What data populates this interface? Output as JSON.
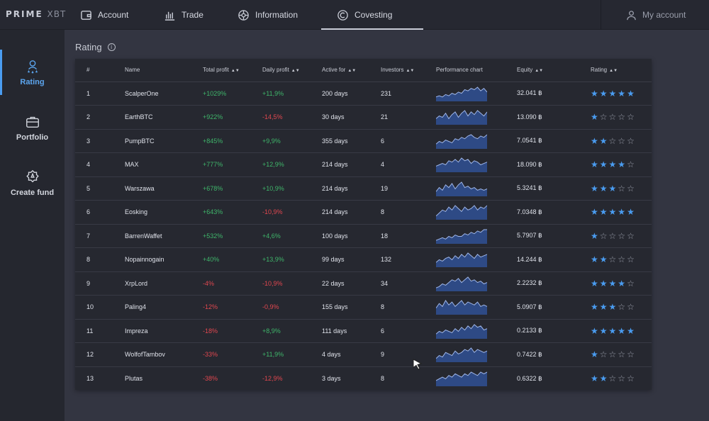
{
  "brand": {
    "logo_bold": "PRIME",
    "logo_light": "XBT"
  },
  "nav": {
    "tabs": [
      {
        "label": "Account",
        "icon": "wallet-icon"
      },
      {
        "label": "Trade",
        "icon": "bar-chart-icon"
      },
      {
        "label": "Information",
        "icon": "globe-icon"
      },
      {
        "label": "Covesting",
        "icon": "covesting-icon",
        "active": true
      }
    ],
    "my_account": "My account"
  },
  "sidebar": {
    "items": [
      {
        "label": "Rating",
        "icon": "rating-icon",
        "active": true
      },
      {
        "label": "Portfolio",
        "icon": "briefcase-icon"
      },
      {
        "label": "Create fund",
        "icon": "create-fund-icon"
      }
    ]
  },
  "page": {
    "title": "Rating",
    "info_glyph": "i"
  },
  "table": {
    "columns": {
      "index": "#",
      "name": "Name",
      "total_profit": "Total profit",
      "daily_profit": "Daily profit",
      "active_for": "Active for",
      "investors": "Investors",
      "performance_chart": "Performance chart",
      "equity": "Equity",
      "rating": "Rating"
    },
    "rows": [
      {
        "index": "1",
        "name": "ScalperOne",
        "total_profit": "+1029%",
        "daily_profit": "+11,9%",
        "active_for": "200 days",
        "investors": "231",
        "equity": "32.041 ฿",
        "rating": 5,
        "spark": [
          3,
          4,
          3,
          5,
          4,
          6,
          5,
          7,
          6,
          9,
          8,
          10,
          9,
          11,
          8,
          10,
          7
        ]
      },
      {
        "index": "2",
        "name": "EarthBTC",
        "total_profit": "+922%",
        "daily_profit": "-14,5%",
        "active_for": "30 days",
        "investors": "21",
        "equity": "13.090 ฿",
        "rating": 1,
        "spark": [
          4,
          6,
          5,
          8,
          4,
          7,
          9,
          5,
          8,
          10,
          6,
          9,
          7,
          10,
          8,
          6,
          9
        ]
      },
      {
        "index": "3",
        "name": "PumpBTC",
        "total_profit": "+845%",
        "daily_profit": "+9,9%",
        "active_for": "355 days",
        "investors": "6",
        "equity": "7.0541 ฿",
        "rating": 2,
        "spark": [
          3,
          5,
          4,
          6,
          5,
          4,
          7,
          6,
          8,
          7,
          9,
          10,
          8,
          7,
          9,
          8,
          10
        ]
      },
      {
        "index": "4",
        "name": "MAX",
        "total_profit": "+777%",
        "daily_profit": "+12,9%",
        "active_for": "214 days",
        "investors": "4",
        "equity": "18.090 ฿",
        "rating": 4,
        "spark": [
          4,
          5,
          6,
          5,
          8,
          7,
          9,
          7,
          10,
          8,
          9,
          6,
          8,
          7,
          5,
          6,
          7
        ]
      },
      {
        "index": "5",
        "name": "Warszawa",
        "total_profit": "+678%",
        "daily_profit": "+10,9%",
        "active_for": "214 days",
        "investors": "19",
        "equity": "5.3241 ฿",
        "rating": 3,
        "spark": [
          3,
          6,
          4,
          8,
          6,
          9,
          5,
          8,
          10,
          6,
          7,
          5,
          6,
          4,
          5,
          4,
          5
        ]
      },
      {
        "index": "6",
        "name": "Eosking",
        "total_profit": "+643%",
        "daily_profit": "-10,9%",
        "active_for": "214 days",
        "investors": "8",
        "equity": "7.0348 ฿",
        "rating": 5,
        "spark": [
          2,
          4,
          6,
          5,
          8,
          6,
          9,
          7,
          5,
          8,
          6,
          7,
          9,
          6,
          8,
          7,
          9
        ]
      },
      {
        "index": "7",
        "name": "BarrenWaffet",
        "total_profit": "+532%",
        "daily_profit": "+4,6%",
        "active_for": "100 days",
        "investors": "18",
        "equity": "5.7907 ฿",
        "rating": 1,
        "spark": [
          2,
          3,
          4,
          3,
          5,
          4,
          6,
          5,
          5,
          7,
          6,
          8,
          7,
          9,
          8,
          10,
          10
        ]
      },
      {
        "index": "8",
        "name": "Nopainnogain",
        "total_profit": "+40%",
        "daily_profit": "+13,9%",
        "active_for": "99 days",
        "investors": "132",
        "equity": "14.244 ฿",
        "rating": 2,
        "spark": [
          3,
          5,
          4,
          6,
          7,
          5,
          8,
          6,
          9,
          7,
          10,
          8,
          6,
          9,
          7,
          8,
          9
        ]
      },
      {
        "index": "9",
        "name": "XrpLord",
        "total_profit": "-4%",
        "daily_profit": "-10,9%",
        "active_for": "22 days",
        "investors": "34",
        "equity": "2.2232 ฿",
        "rating": 4,
        "spark": [
          2,
          3,
          5,
          4,
          6,
          8,
          7,
          9,
          6,
          8,
          10,
          7,
          8,
          6,
          7,
          5,
          6
        ]
      },
      {
        "index": "10",
        "name": "Paling4",
        "total_profit": "-12%",
        "daily_profit": "-0,9%",
        "active_for": "155 days",
        "investors": "8",
        "equity": "5.0907 ฿",
        "rating": 3,
        "spark": [
          4,
          7,
          5,
          9,
          6,
          8,
          5,
          7,
          9,
          6,
          8,
          7,
          6,
          8,
          5,
          6,
          5
        ]
      },
      {
        "index": "11",
        "name": "Impreza",
        "total_profit": "-18%",
        "daily_profit": "+8,9%",
        "active_for": "111 days",
        "investors": "6",
        "equity": "0.2133 ฿",
        "rating": 5,
        "spark": [
          3,
          5,
          4,
          6,
          5,
          4,
          7,
          5,
          8,
          6,
          9,
          7,
          10,
          8,
          9,
          6,
          7
        ]
      },
      {
        "index": "12",
        "name": "WolfofTambov",
        "total_profit": "-33%",
        "daily_profit": "+11,9%",
        "active_for": "4 days",
        "investors": "9",
        "equity": "0.7422 ฿",
        "rating": 1,
        "spark": [
          2,
          4,
          3,
          6,
          5,
          4,
          7,
          5,
          6,
          8,
          7,
          9,
          6,
          8,
          7,
          6,
          7
        ]
      },
      {
        "index": "13",
        "name": "Plutas",
        "total_profit": "-38%",
        "daily_profit": "-12,9%",
        "active_for": "3 days",
        "investors": "8",
        "equity": "0.6322 ฿",
        "rating": 2,
        "spark": [
          3,
          4,
          5,
          4,
          6,
          5,
          7,
          6,
          5,
          7,
          6,
          8,
          7,
          6,
          8,
          7,
          8
        ]
      }
    ]
  },
  "colors": {
    "accent": "#4a9cf0",
    "positive": "#3fb56a",
    "negative": "#e0474f",
    "spark_fill": "#2e4a85",
    "spark_line": "#9fb6e8"
  }
}
